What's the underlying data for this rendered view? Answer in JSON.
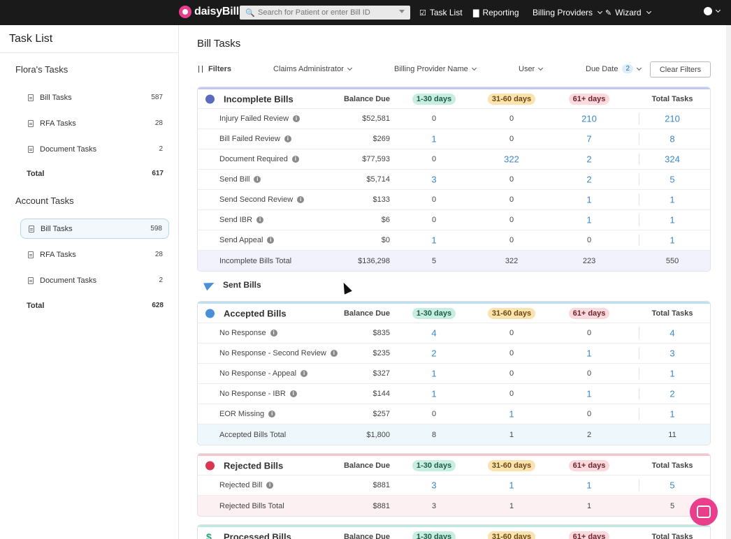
{
  "nav": {
    "brand": "daisyBill",
    "search_placeholder": "Search for Patient or enter Bill ID",
    "items": [
      {
        "label": "Task List",
        "icon": "clipboard-icon"
      },
      {
        "label": "Reporting",
        "icon": "bar-chart-icon"
      },
      {
        "label": "Billing Providers",
        "icon": ""
      },
      {
        "label": "Wizard",
        "icon": "wand-icon"
      }
    ]
  },
  "sidebar": {
    "title": "Task List",
    "floras_tasks": {
      "heading": "Flora's Tasks",
      "items": [
        {
          "label": "Bill Tasks",
          "count": "587"
        },
        {
          "label": "RFA Tasks",
          "count": "28"
        },
        {
          "label": "Document Tasks",
          "count": "2"
        }
      ],
      "total_label": "Total",
      "total": "617"
    },
    "account_tasks": {
      "heading": "Account Tasks",
      "items": [
        {
          "label": "Bill Tasks",
          "count": "598"
        },
        {
          "label": "RFA Tasks",
          "count": "28"
        },
        {
          "label": "Document Tasks",
          "count": "2"
        }
      ],
      "total_label": "Total",
      "total": "628"
    }
  },
  "main": {
    "title": "Bill Tasks",
    "filters": {
      "label": "Filters",
      "claims_admin": "Claims Administrator",
      "provider": "Billing Provider Name",
      "user": "User",
      "due_date": "Due Date",
      "due_date_count": "2",
      "clear": "Clear Filters"
    },
    "columns": {
      "balance": "Balance Due",
      "a": "1-30 days",
      "b": "31-60 days",
      "c": "61+ days",
      "total": "Total Tasks"
    },
    "incomplete": {
      "title": "Incomplete Bills",
      "rows": [
        {
          "label": "Injury Failed Review",
          "balance": "$52,581",
          "a": "0",
          "b": "0",
          "c": "210",
          "total": "210"
        },
        {
          "label": "Bill Failed Review",
          "balance": "$269",
          "a": "1",
          "b": "0",
          "c": "7",
          "total": "8"
        },
        {
          "label": "Document Required",
          "balance": "$77,593",
          "a": "0",
          "b": "322",
          "c": "2",
          "total": "324"
        },
        {
          "label": "Send Bill",
          "balance": "$5,714",
          "a": "3",
          "b": "0",
          "c": "2",
          "total": "5"
        },
        {
          "label": "Send Second Review",
          "balance": "$133",
          "a": "0",
          "b": "0",
          "c": "1",
          "total": "1"
        },
        {
          "label": "Send IBR",
          "balance": "$6",
          "a": "0",
          "b": "0",
          "c": "1",
          "total": "1"
        },
        {
          "label": "Send Appeal",
          "balance": "$0",
          "a": "1",
          "b": "0",
          "c": "0",
          "total": "1"
        }
      ],
      "total": {
        "label": "Incomplete Bills Total",
        "balance": "$136,298",
        "a": "5",
        "b": "322",
        "c": "223",
        "total": "550"
      }
    },
    "sent_label": "Sent Bills",
    "accepted": {
      "title": "Accepted Bills",
      "rows": [
        {
          "label": "No Response",
          "balance": "$835",
          "a": "4",
          "b": "0",
          "c": "0",
          "total": "4"
        },
        {
          "label": "No Response - Second Review",
          "balance": "$235",
          "a": "2",
          "b": "0",
          "c": "1",
          "total": "3"
        },
        {
          "label": "No Response - Appeal",
          "balance": "$327",
          "a": "1",
          "b": "0",
          "c": "0",
          "total": "1"
        },
        {
          "label": "No Response - IBR",
          "balance": "$144",
          "a": "1",
          "b": "0",
          "c": "1",
          "total": "2"
        },
        {
          "label": "EOR Missing",
          "balance": "$257",
          "a": "0",
          "b": "1",
          "c": "0",
          "total": "1"
        }
      ],
      "total": {
        "label": "Accepted Bills Total",
        "balance": "$1,800",
        "a": "8",
        "b": "1",
        "c": "2",
        "total": "11"
      }
    },
    "rejected": {
      "title": "Rejected Bills",
      "rows": [
        {
          "label": "Rejected Bill",
          "balance": "$881",
          "a": "3",
          "b": "1",
          "c": "1",
          "total": "5"
        }
      ],
      "total": {
        "label": "Rejected Bills Total",
        "balance": "$881",
        "a": "3",
        "b": "1",
        "c": "1",
        "total": "5"
      }
    },
    "processed": {
      "title": "Processed Bills"
    }
  },
  "colors": {
    "nav_bg": "#1a1a1a",
    "brand": "#e83e8c",
    "link": "#3a87c6",
    "incomplete": "#c5c9ec",
    "accepted": "#bfe0f3",
    "rejected": "#f4c7cd",
    "processed": "#bfeae0"
  }
}
